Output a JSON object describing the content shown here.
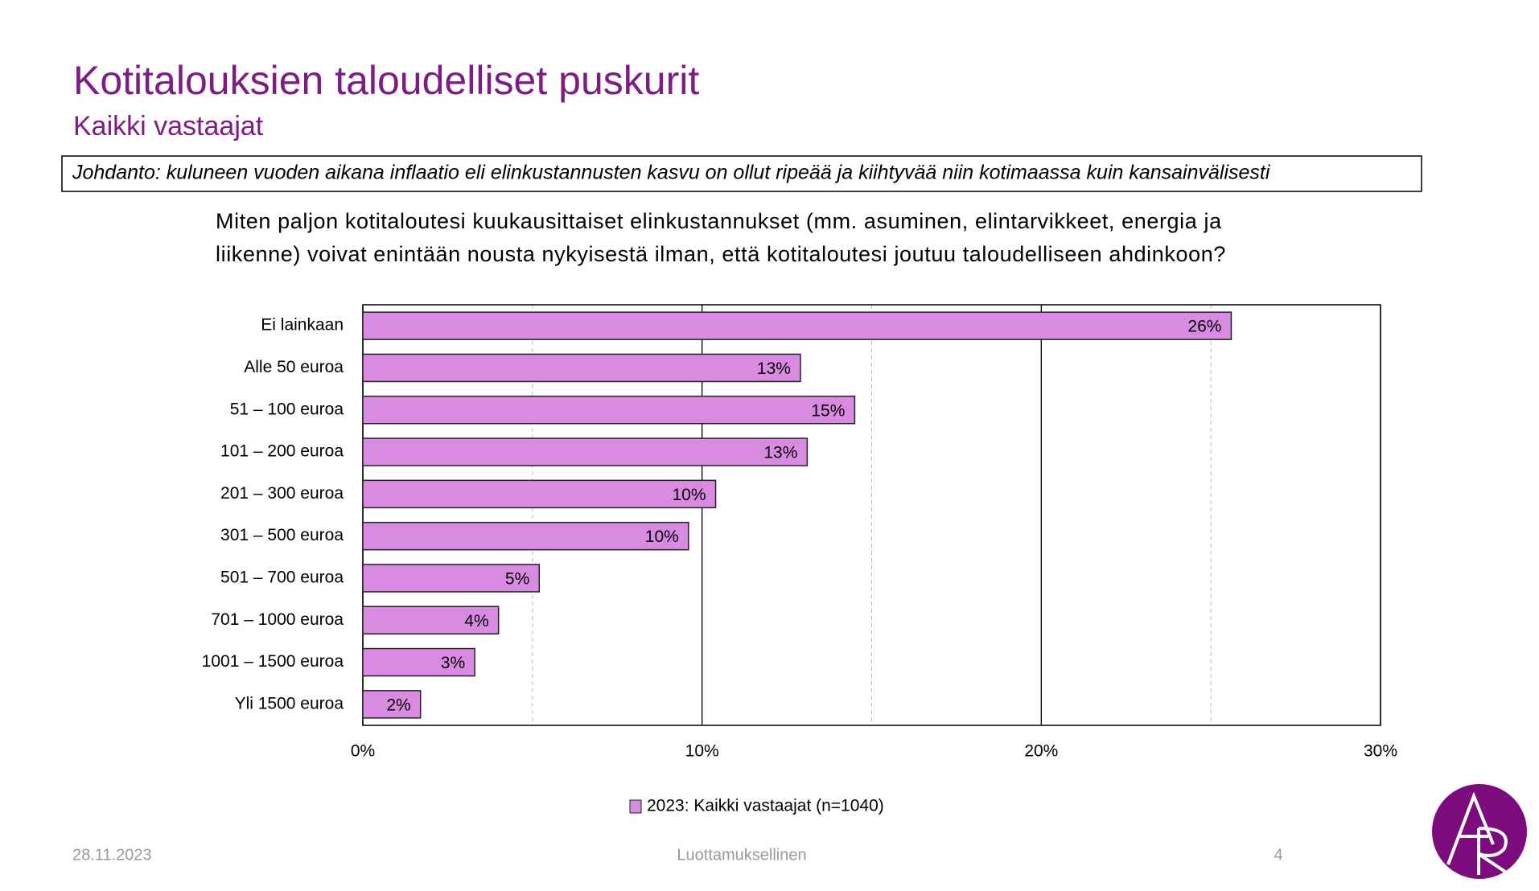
{
  "header": {
    "title": "Kotitalouksien taloudelliset puskurit",
    "subtitle": "Kaikki vastaajat",
    "intro": "Johdanto: kuluneen vuoden aikana inflaatio eli elinkustannusten kasvu on ollut ripeää ja kiihtyvää niin kotimaassa kuin kansainvälisesti",
    "question": [
      "Miten paljon kotitaloutesi kuukausittaiset elinkustannukset (mm. asuminen, elintarvikkeet, energia ja",
      "liikenne) voivat enintään nousta nykyisestä ilman, että kotitaloutesi joutuu taloudelliseen ahdinkoon?"
    ]
  },
  "chart_data": {
    "type": "barh",
    "categories": [
      "Ei lainkaan",
      "Alle 50 euroa",
      "51 – 100 euroa",
      "101 – 200 euroa",
      "201 – 300 euroa",
      "301 – 500 euroa",
      "501 – 700 euroa",
      "701 – 1000 euroa",
      "1001 – 1500 euroa",
      "Yli 1500 euroa"
    ],
    "series": [
      {
        "name": "2023: Kaikki vastaajat (n=1040)",
        "color": "#d98be2",
        "values": [
          25.6,
          12.9,
          14.5,
          13.1,
          10.4,
          9.6,
          5.2,
          4.0,
          3.3,
          1.7
        ],
        "value_labels": [
          "26%",
          "13%",
          "15%",
          "13%",
          "10%",
          "10%",
          "5%",
          "4%",
          "3%",
          "2%"
        ]
      }
    ],
    "xlim": [
      0,
      30
    ],
    "xticks": [
      {
        "value": 0,
        "label": "0%"
      },
      {
        "value": 10,
        "label": "10%"
      },
      {
        "value": 20,
        "label": "20%"
      },
      {
        "value": 30,
        "label": "30%"
      }
    ],
    "minor_xticks": [
      5,
      15,
      25
    ],
    "grid": true,
    "legend": "bottom"
  },
  "footer": {
    "date": "28.11.2023",
    "label": "Luottamuksellinen",
    "page": "4"
  }
}
